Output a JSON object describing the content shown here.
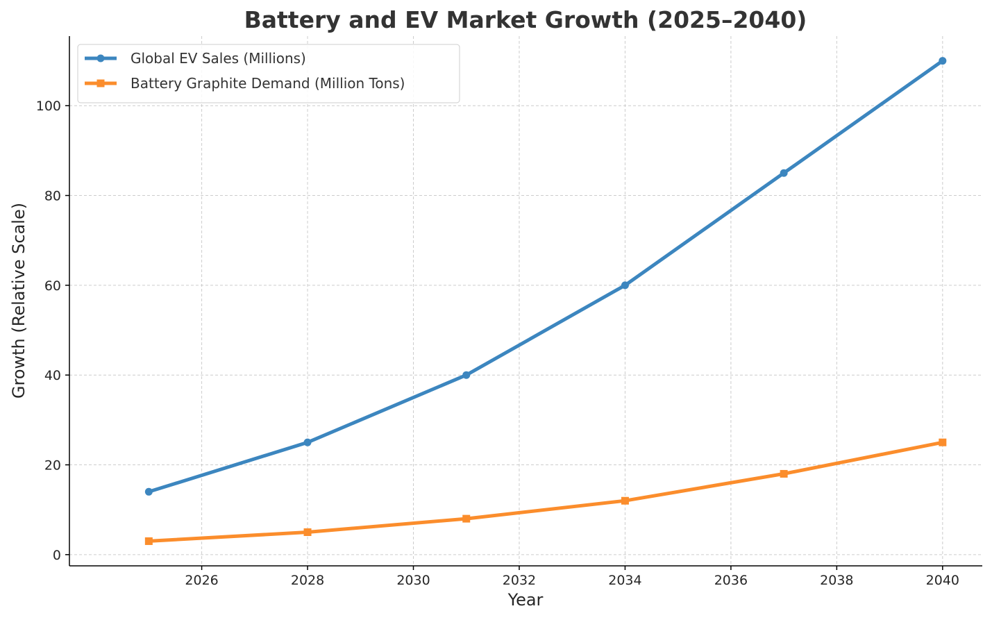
{
  "chart_data": {
    "type": "line",
    "title": "Battery and EV Market Growth (2025–2040)",
    "xlabel": "Year",
    "ylabel": "Growth (Relative Scale)",
    "xlim": [
      2023.5,
      2040.75
    ],
    "ylim": [
      -2.5,
      115.5
    ],
    "xticks": [
      2026,
      2028,
      2030,
      2032,
      2034,
      2036,
      2038,
      2040
    ],
    "yticks": [
      0,
      20,
      40,
      60,
      80,
      100
    ],
    "grid": true,
    "legend_position": "upper-left",
    "series": [
      {
        "name": "Global EV Sales (Millions)",
        "color": "#3c86bf",
        "marker": "circle",
        "x": [
          2025,
          2028,
          2031,
          2034,
          2037,
          2040
        ],
        "y": [
          14,
          25,
          40,
          60,
          85,
          110
        ]
      },
      {
        "name": "Battery Graphite Demand (Million Tons)",
        "color": "#fb8d2c",
        "marker": "square",
        "x": [
          2025,
          2028,
          2031,
          2034,
          2037,
          2040
        ],
        "y": [
          3,
          5,
          8,
          12,
          18,
          25
        ]
      }
    ]
  }
}
